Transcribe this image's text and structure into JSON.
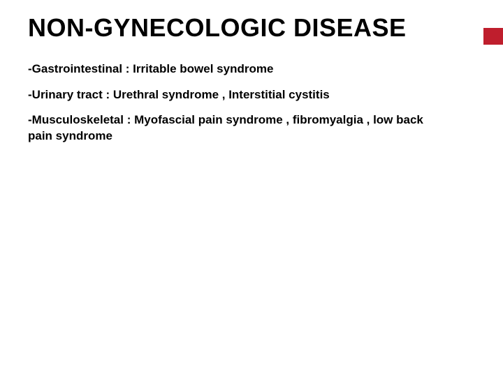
{
  "slide": {
    "title": "NON-GYNECOLOGIC DISEASE",
    "title_color": "#000000",
    "title_fontsize": 36,
    "title_fontweight": 900,
    "accent_color": "#bf1e2d",
    "background_color": "#ffffff",
    "body_fontsize": 17,
    "body_fontweight": 700,
    "body_color": "#000000",
    "items": [
      "-Gastrointestinal : Irritable bowel syndrome",
      "-Urinary tract : Urethral syndrome , Interstitial cystitis",
      "-Musculoskeletal : Myofascial pain syndrome , fibromyalgia , low back pain syndrome"
    ]
  }
}
